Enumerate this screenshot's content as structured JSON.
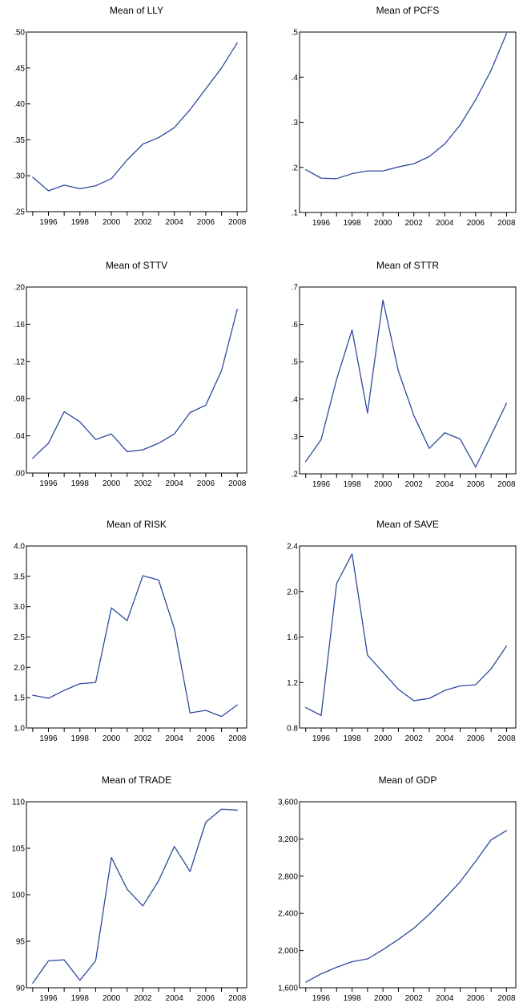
{
  "figure": {
    "line_color": "#2e4a9e"
  },
  "chart_data": [
    {
      "type": "line",
      "title": "Mean of LLY",
      "x": [
        1995,
        1996,
        1997,
        1998,
        1999,
        2000,
        2001,
        2002,
        2003,
        2004,
        2005,
        2006,
        2007,
        2008
      ],
      "values": [
        0.298,
        0.279,
        0.287,
        0.282,
        0.286,
        0.296,
        0.322,
        0.344,
        0.353,
        0.367,
        0.392,
        0.421,
        0.45,
        0.485
      ],
      "xlim": [
        1994.6,
        2008.6
      ],
      "ylim": [
        0.25,
        0.5
      ],
      "xticks": [
        1995,
        1996,
        1997,
        1998,
        1999,
        2000,
        2001,
        2002,
        2003,
        2004,
        2005,
        2006,
        2007,
        2008
      ],
      "xtick_labels": [
        "",
        "1996",
        "",
        "1998",
        "",
        "2000",
        "",
        "2002",
        "",
        "2004",
        "",
        "2006",
        "",
        "2008"
      ],
      "yticks": [
        0.25,
        0.3,
        0.35,
        0.4,
        0.45,
        0.5
      ],
      "ytick_labels": [
        ".25",
        ".30",
        ".35",
        ".40",
        ".45",
        ".50"
      ],
      "grid": false
    },
    {
      "type": "line",
      "title": "Mean of PCFS",
      "x": [
        1995,
        1996,
        1997,
        1998,
        1999,
        2000,
        2001,
        2002,
        2003,
        2004,
        2005,
        2006,
        2007,
        2008
      ],
      "values": [
        0.195,
        0.176,
        0.175,
        0.186,
        0.192,
        0.192,
        0.201,
        0.208,
        0.224,
        0.252,
        0.294,
        0.35,
        0.415,
        0.497
      ],
      "xlim": [
        1994.6,
        2008.6
      ],
      "ylim": [
        0.1,
        0.5
      ],
      "xticks": [
        1995,
        1996,
        1997,
        1998,
        1999,
        2000,
        2001,
        2002,
        2003,
        2004,
        2005,
        2006,
        2007,
        2008
      ],
      "xtick_labels": [
        "",
        "1996",
        "",
        "1998",
        "",
        "2000",
        "",
        "2002",
        "",
        "2004",
        "",
        "2006",
        "",
        "2008"
      ],
      "yticks": [
        0.1,
        0.2,
        0.3,
        0.4,
        0.5
      ],
      "ytick_labels": [
        ".1",
        ".2",
        ".3",
        ".4",
        ".5"
      ],
      "grid": false
    },
    {
      "type": "line",
      "title": "Mean of STTV",
      "x": [
        1995,
        1996,
        1997,
        1998,
        1999,
        2000,
        2001,
        2002,
        2003,
        2004,
        2005,
        2006,
        2007,
        2008
      ],
      "values": [
        0.016,
        0.032,
        0.066,
        0.055,
        0.036,
        0.042,
        0.023,
        0.025,
        0.032,
        0.042,
        0.065,
        0.073,
        0.11,
        0.176
      ],
      "xlim": [
        1994.6,
        2008.6
      ],
      "ylim": [
        0.0,
        0.2
      ],
      "xticks": [
        1995,
        1996,
        1997,
        1998,
        1999,
        2000,
        2001,
        2002,
        2003,
        2004,
        2005,
        2006,
        2007,
        2008
      ],
      "xtick_labels": [
        "",
        "1996",
        "",
        "1998",
        "",
        "2000",
        "",
        "2002",
        "",
        "2004",
        "",
        "2006",
        "",
        "2008"
      ],
      "yticks": [
        0.0,
        0.04,
        0.08,
        0.12,
        0.16,
        0.2
      ],
      "ytick_labels": [
        ".00",
        ".04",
        ".08",
        ".12",
        ".16",
        ".20"
      ],
      "grid": false
    },
    {
      "type": "line",
      "title": "Mean of STTR",
      "x": [
        1995,
        1996,
        1997,
        1998,
        1999,
        2000,
        2001,
        2002,
        2003,
        2004,
        2005,
        2006,
        2007,
        2008
      ],
      "values": [
        0.233,
        0.292,
        0.453,
        0.585,
        0.363,
        0.665,
        0.475,
        0.356,
        0.268,
        0.31,
        0.293,
        0.218,
        0.303,
        0.389
      ],
      "xlim": [
        1994.6,
        2008.6
      ],
      "ylim": [
        0.2,
        0.7
      ],
      "xticks": [
        1995,
        1996,
        1997,
        1998,
        1999,
        2000,
        2001,
        2002,
        2003,
        2004,
        2005,
        2006,
        2007,
        2008
      ],
      "xtick_labels": [
        "",
        "1996",
        "",
        "1998",
        "",
        "2000",
        "",
        "2002",
        "",
        "2004",
        "",
        "2006",
        "",
        "2008"
      ],
      "yticks": [
        0.2,
        0.3,
        0.4,
        0.5,
        0.6,
        0.7
      ],
      "ytick_labels": [
        ".2",
        ".3",
        ".4",
        ".5",
        ".6",
        ".7"
      ],
      "grid": false
    },
    {
      "type": "line",
      "title": "Mean of RISK",
      "x": [
        1995,
        1996,
        1997,
        1998,
        1999,
        2000,
        2001,
        2002,
        2003,
        2004,
        2005,
        2006,
        2007,
        2008
      ],
      "values": [
        1.54,
        1.49,
        1.62,
        1.73,
        1.75,
        2.98,
        2.77,
        3.51,
        3.44,
        2.64,
        1.25,
        1.29,
        1.19,
        1.38
      ],
      "xlim": [
        1994.6,
        2008.6
      ],
      "ylim": [
        1.0,
        4.0
      ],
      "xticks": [
        1995,
        1996,
        1997,
        1998,
        1999,
        2000,
        2001,
        2002,
        2003,
        2004,
        2005,
        2006,
        2007,
        2008
      ],
      "xtick_labels": [
        "",
        "1996",
        "",
        "1998",
        "",
        "2000",
        "",
        "2002",
        "",
        "2004",
        "",
        "2006",
        "",
        "2008"
      ],
      "yticks": [
        1.0,
        1.5,
        2.0,
        2.5,
        3.0,
        3.5,
        4.0
      ],
      "ytick_labels": [
        "1.0",
        "1.5",
        "2.0",
        "2.5",
        "3.0",
        "3.5",
        "4.0"
      ],
      "grid": false
    },
    {
      "type": "line",
      "title": "Mean of SAVE",
      "x": [
        1995,
        1996,
        1997,
        1998,
        1999,
        2000,
        2001,
        2002,
        2003,
        2004,
        2005,
        2006,
        2007,
        2008
      ],
      "values": [
        0.98,
        0.91,
        2.07,
        2.33,
        1.44,
        1.29,
        1.14,
        1.04,
        1.06,
        1.13,
        1.17,
        1.18,
        1.32,
        1.52
      ],
      "xlim": [
        1994.6,
        2008.6
      ],
      "ylim": [
        0.8,
        2.4
      ],
      "xticks": [
        1995,
        1996,
        1997,
        1998,
        1999,
        2000,
        2001,
        2002,
        2003,
        2004,
        2005,
        2006,
        2007,
        2008
      ],
      "xtick_labels": [
        "",
        "1996",
        "",
        "1998",
        "",
        "2000",
        "",
        "2002",
        "",
        "2004",
        "",
        "2006",
        "",
        "2008"
      ],
      "yticks": [
        0.8,
        1.2,
        1.6,
        2.0,
        2.4
      ],
      "ytick_labels": [
        "0.8",
        "1.2",
        "1.6",
        "2.0",
        "2.4"
      ],
      "grid": false
    },
    {
      "type": "line",
      "title": "Mean of TRADE",
      "x": [
        1995,
        1996,
        1997,
        1998,
        1999,
        2000,
        2001,
        2002,
        2003,
        2004,
        2005,
        2006,
        2007,
        2008
      ],
      "values": [
        90.5,
        92.9,
        93.0,
        90.8,
        92.9,
        104.0,
        100.6,
        98.8,
        101.5,
        105.2,
        102.5,
        107.8,
        109.2,
        109.1
      ],
      "xlim": [
        1994.6,
        2008.6
      ],
      "ylim": [
        90,
        110
      ],
      "xticks": [
        1995,
        1996,
        1997,
        1998,
        1999,
        2000,
        2001,
        2002,
        2003,
        2004,
        2005,
        2006,
        2007,
        2008
      ],
      "xtick_labels": [
        "",
        "1996",
        "",
        "1998",
        "",
        "2000",
        "",
        "2002",
        "",
        "2004",
        "",
        "2006",
        "",
        "2008"
      ],
      "yticks": [
        90,
        95,
        100,
        105,
        110
      ],
      "ytick_labels": [
        "90",
        "95",
        "100",
        "105",
        "110"
      ],
      "grid": false
    },
    {
      "type": "line",
      "title": "Mean of GDP",
      "x": [
        1995,
        1996,
        1997,
        1998,
        1999,
        2000,
        2001,
        2002,
        2003,
        2004,
        2005,
        2006,
        2007,
        2008
      ],
      "values": [
        1660,
        1750,
        1820,
        1880,
        1910,
        2010,
        2120,
        2240,
        2390,
        2560,
        2740,
        2960,
        3190,
        3290
      ],
      "xlim": [
        1994.6,
        2008.6
      ],
      "ylim": [
        1600,
        3600
      ],
      "xticks": [
        1995,
        1996,
        1997,
        1998,
        1999,
        2000,
        2001,
        2002,
        2003,
        2004,
        2005,
        2006,
        2007,
        2008
      ],
      "xtick_labels": [
        "",
        "1996",
        "",
        "1998",
        "",
        "2000",
        "",
        "2002",
        "",
        "2004",
        "",
        "2006",
        "",
        "2008"
      ],
      "yticks": [
        1600,
        2000,
        2400,
        2800,
        3200,
        3600
      ],
      "ytick_labels": [
        "1,600",
        "2,000",
        "2,400",
        "2,800",
        "3,200",
        "3,600"
      ],
      "grid": false
    }
  ]
}
